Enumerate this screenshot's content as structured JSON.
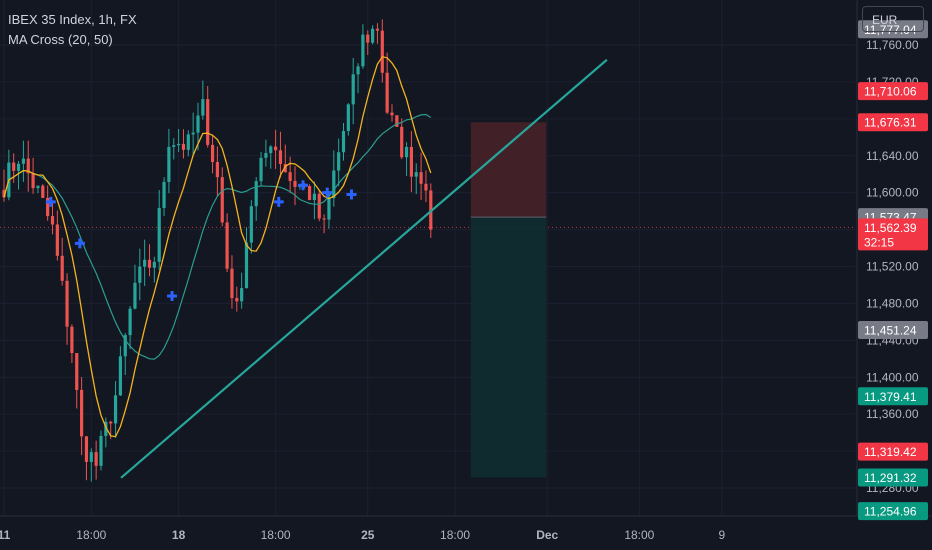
{
  "legend": {
    "symbol": "IBEX 35 Index, 1h, FX",
    "indicator": "MA Cross (20, 50)"
  },
  "currency_button": "EUR",
  "colors": {
    "background": "#131722",
    "up": "#26a69a",
    "down": "#ef5350",
    "ma_fast": "#f5b31c",
    "ma_slow": "#2a9d8f",
    "cross": "#2962ff",
    "trendline": "#26a69a",
    "stop_zone": "#4a2228",
    "target_zone": "#102e32"
  },
  "chart_data": {
    "type": "candlestick",
    "y_axis": {
      "min": 11230,
      "max": 11800,
      "ticks": [
        11760,
        11720,
        11680,
        11640,
        11600,
        11560,
        11520,
        11480,
        11440,
        11400,
        11360,
        11320,
        11280
      ]
    },
    "x_axis": {
      "ticks": [
        "11",
        "18:00",
        "18",
        "18:00",
        "25",
        "18:00",
        "Dec",
        "18:00",
        "9"
      ],
      "tick_index": [
        0,
        18,
        36,
        56,
        75,
        93,
        112,
        131,
        148
      ],
      "bar_count": 165
    },
    "price_labels": [
      {
        "value": "11,777.04",
        "price": 11777.04,
        "color": "#787b86"
      },
      {
        "value": "11,710.06",
        "price": 11710.06,
        "color": "#f23645"
      },
      {
        "value": "11,676.31",
        "price": 11676.31,
        "color": "#f23645"
      },
      {
        "value": "11,573.47",
        "price": 11573.47,
        "color": "#787b86"
      },
      {
        "value": "11,562.39",
        "price": 11562.39,
        "color": "#f23645",
        "countdown": "32:15"
      },
      {
        "value": "11,451.24",
        "price": 11451.24,
        "color": "#787b86"
      },
      {
        "value": "11,379.41",
        "price": 11379.41,
        "color": "#089981"
      },
      {
        "value": "11,319.42",
        "price": 11319.42,
        "color": "#f23645"
      },
      {
        "value": "11,291.32",
        "price": 11291.32,
        "color": "#089981"
      },
      {
        "value": "11,254.96",
        "price": 11254.96,
        "color": "#089981"
      }
    ],
    "last_price": 11562.39,
    "position": {
      "entry": 11573.47,
      "stop": 11676.31,
      "target": 11291.32,
      "bar_start": 88,
      "bar_end": 112
    },
    "trendline": {
      "bar_start": 20,
      "price_start": 11291,
      "bar_end": 114,
      "price_end": 11744
    },
    "cross_markers": [
      {
        "bar": 8,
        "price": 11590
      },
      {
        "bar": 14,
        "price": 11545
      },
      {
        "bar": 33,
        "price": 11488
      },
      {
        "bar": 55,
        "price": 11590
      },
      {
        "bar": 60,
        "price": 11608
      },
      {
        "bar": 65,
        "price": 11600
      },
      {
        "bar": 70,
        "price": 11598
      }
    ],
    "waypoints": [
      [
        0,
        11610
      ],
      [
        3,
        11640
      ],
      [
        7,
        11600
      ],
      [
        10,
        11560
      ],
      [
        14,
        11430
      ],
      [
        16,
        11330
      ],
      [
        19,
        11305
      ],
      [
        23,
        11380
      ],
      [
        27,
        11500
      ],
      [
        31,
        11530
      ],
      [
        34,
        11660
      ],
      [
        38,
        11650
      ],
      [
        41,
        11690
      ],
      [
        44,
        11615
      ],
      [
        46,
        11520
      ],
      [
        48,
        11470
      ],
      [
        51,
        11590
      ],
      [
        55,
        11660
      ],
      [
        59,
        11615
      ],
      [
        63,
        11600
      ],
      [
        66,
        11560
      ],
      [
        68,
        11620
      ],
      [
        71,
        11690
      ],
      [
        74,
        11765
      ],
      [
        77,
        11780
      ],
      [
        79,
        11690
      ],
      [
        81,
        11660
      ],
      [
        84,
        11630
      ],
      [
        87,
        11615
      ],
      [
        88,
        11560
      ]
    ]
  }
}
